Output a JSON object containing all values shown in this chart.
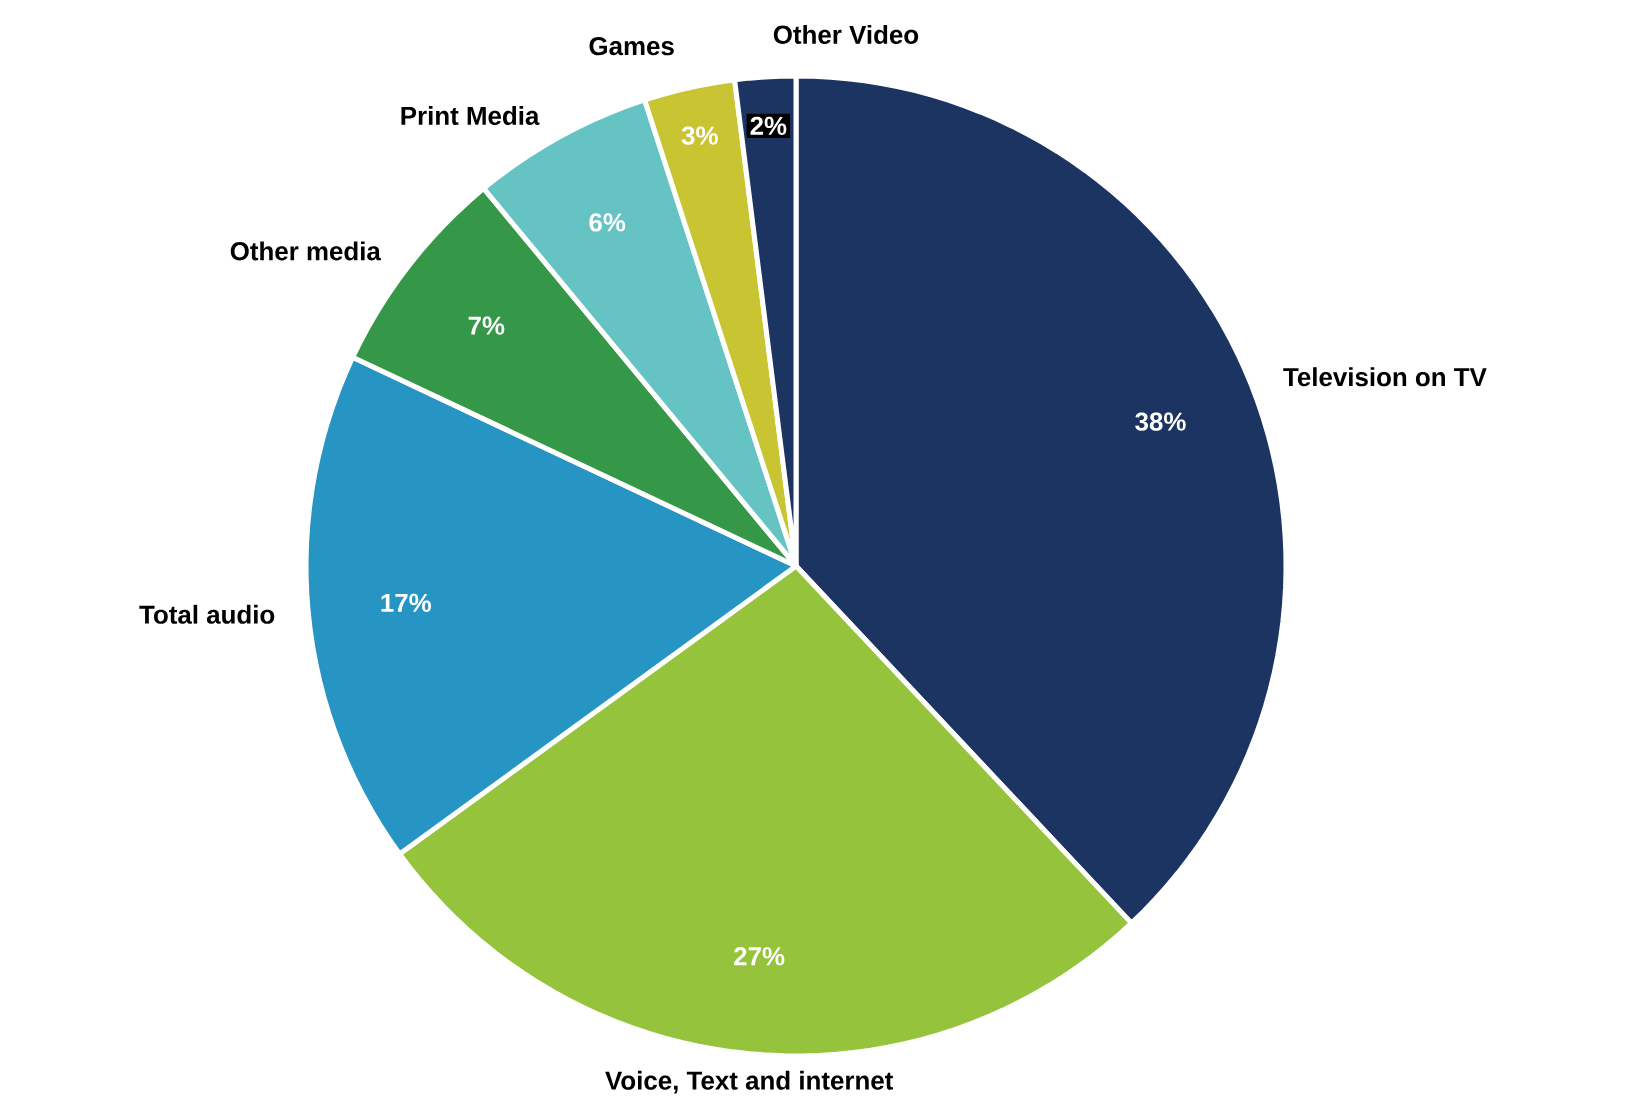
{
  "chart_data": {
    "type": "pie",
    "categories": [
      "Television on TV",
      "Voice, Text and internet",
      "Total audio",
      "Other media",
      "Print Media",
      "Games",
      "Other Video"
    ],
    "values": [
      38,
      27,
      17,
      7,
      6,
      3,
      2
    ],
    "value_labels": [
      "38%",
      "27%",
      "17%",
      "7%",
      "6%",
      "3%",
      "2%"
    ],
    "colors": [
      "#1b3461",
      "#95c43c",
      "#2795c3",
      "#359748",
      "#65c4c3",
      "#c8c432",
      "#1b3461"
    ]
  }
}
